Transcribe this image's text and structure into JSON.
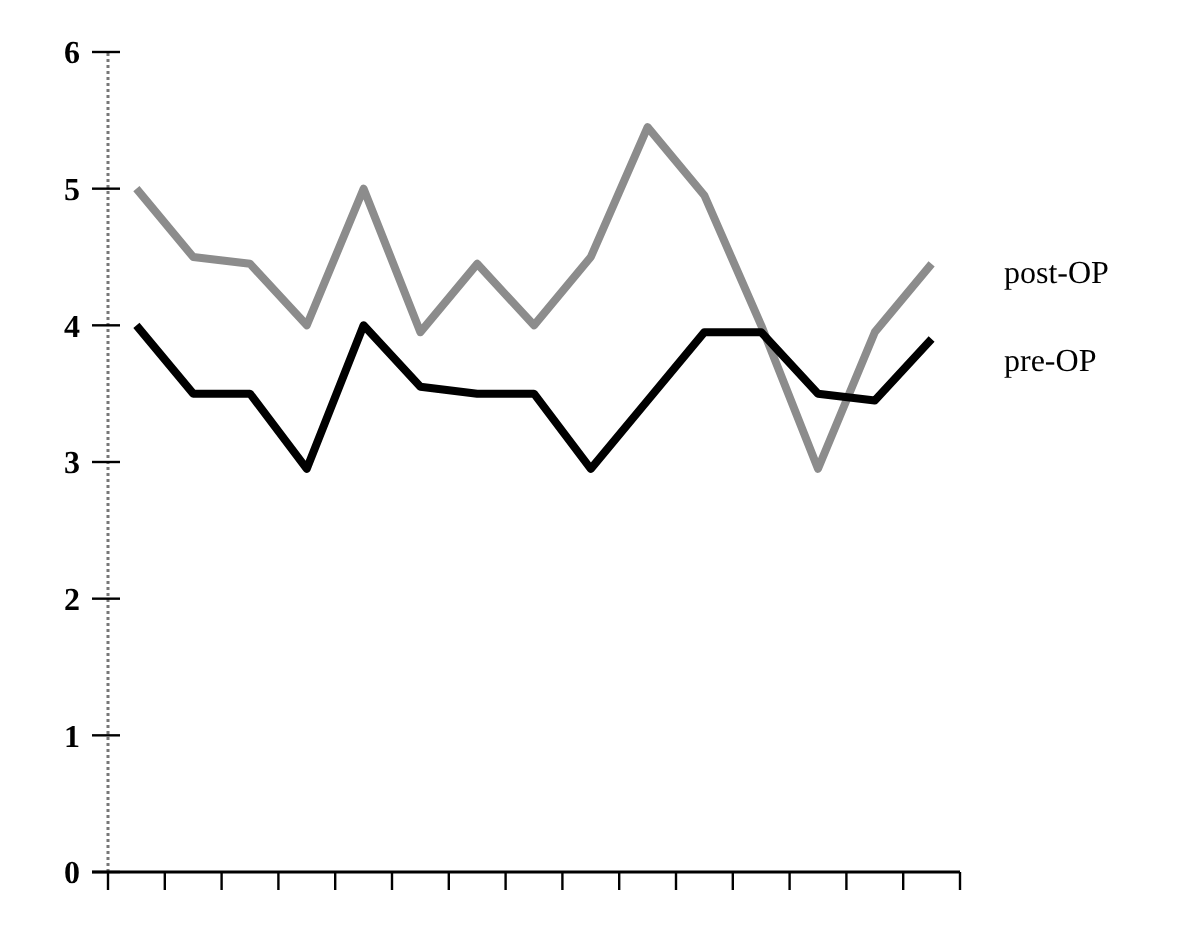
{
  "chart_data": {
    "type": "line",
    "categories": [
      null,
      null,
      null,
      null,
      null,
      null,
      null,
      null,
      null,
      null,
      null,
      null,
      null,
      null,
      null
    ],
    "series": [
      {
        "name": "post-OP",
        "color": "#8c8c8c",
        "values": [
          5.0,
          4.5,
          4.45,
          4.0,
          5.0,
          3.95,
          4.45,
          4.0,
          4.5,
          5.45,
          4.95,
          4.0,
          2.95,
          3.95,
          4.45
        ]
      },
      {
        "name": "pre-OP",
        "color": "#000000",
        "values": [
          4.0,
          3.5,
          3.5,
          2.95,
          4.0,
          3.55,
          3.5,
          3.5,
          2.95,
          3.45,
          3.95,
          3.95,
          3.5,
          3.45,
          3.9
        ]
      }
    ],
    "ylim": [
      0,
      6
    ],
    "yticks": [
      0,
      1,
      2,
      3,
      4,
      5,
      6
    ],
    "legend": "right",
    "grid": false,
    "marker": "none",
    "line_style": "solid"
  }
}
